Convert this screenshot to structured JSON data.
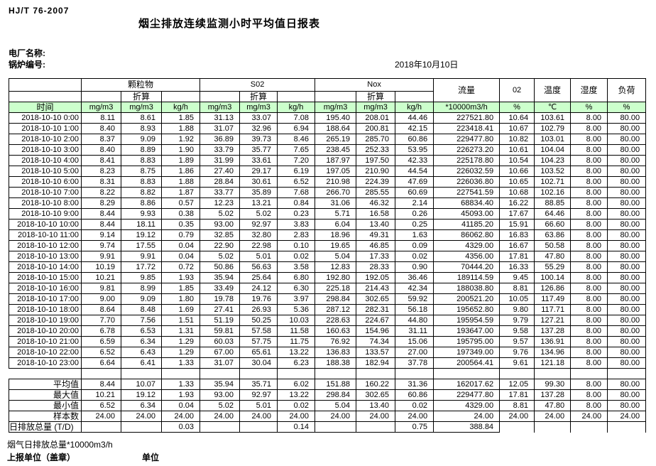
{
  "header": {
    "doc_code": "HJ/T  76-2007",
    "title": "烟尘排放连续监测小时平均值日报表",
    "plant_name_label": "电厂名称:",
    "boiler_no_label": "锅炉编号:",
    "date": "2018年10月10日"
  },
  "table": {
    "time_header": "时间",
    "converted_label": "折算",
    "groups": {
      "particulate": "颗粒物",
      "so2": "S02",
      "nox": "Nox",
      "flow": "流量",
      "o2": "02",
      "temperature": "温度",
      "humidity": "湿度",
      "load": "负荷"
    },
    "units": [
      "mg/m3",
      "mg/m3",
      "kg/h",
      "mg/m3",
      "mg/m3",
      "kg/h",
      "mg/m3",
      "mg/m3",
      "kg/h",
      "*10000m3/h",
      "%",
      "℃",
      "%",
      "%"
    ],
    "rows": [
      {
        "time": "2018-10-10 0:00",
        "values": [
          "8.11",
          "8.61",
          "1.85",
          "31.13",
          "33.07",
          "7.08",
          "195.40",
          "208.01",
          "44.46",
          "227521.80",
          "10.64",
          "103.61",
          "8.00",
          "80.00"
        ]
      },
      {
        "time": "2018-10-10 1:00",
        "values": [
          "8.40",
          "8.93",
          "1.88",
          "31.07",
          "32.96",
          "6.94",
          "188.64",
          "200.81",
          "42.15",
          "223418.41",
          "10.67",
          "102.79",
          "8.00",
          "80.00"
        ]
      },
      {
        "time": "2018-10-10 2:00",
        "values": [
          "8.37",
          "9.09",
          "1.92",
          "36.89",
          "39.73",
          "8.46",
          "265.19",
          "285.70",
          "60.86",
          "229477.80",
          "10.82",
          "103.01",
          "8.00",
          "80.00"
        ]
      },
      {
        "time": "2018-10-10 3:00",
        "values": [
          "8.40",
          "8.89",
          "1.90",
          "33.79",
          "35.77",
          "7.65",
          "238.45",
          "252.33",
          "53.95",
          "226273.20",
          "10.61",
          "104.04",
          "8.00",
          "80.00"
        ]
      },
      {
        "time": "2018-10-10 4:00",
        "values": [
          "8.41",
          "8.83",
          "1.89",
          "31.99",
          "33.61",
          "7.20",
          "187.97",
          "197.50",
          "42.33",
          "225178.80",
          "10.54",
          "104.23",
          "8.00",
          "80.00"
        ]
      },
      {
        "time": "2018-10-10 5:00",
        "values": [
          "8.23",
          "8.75",
          "1.86",
          "27.40",
          "29.17",
          "6.19",
          "197.05",
          "210.90",
          "44.54",
          "226032.59",
          "10.66",
          "103.52",
          "8.00",
          "80.00"
        ]
      },
      {
        "time": "2018-10-10 6:00",
        "values": [
          "8.31",
          "8.83",
          "1.88",
          "28.84",
          "30.61",
          "6.52",
          "210.98",
          "224.39",
          "47.69",
          "226036.80",
          "10.65",
          "102.71",
          "8.00",
          "80.00"
        ]
      },
      {
        "time": "2018-10-10 7:00",
        "values": [
          "8.22",
          "8.82",
          "1.87",
          "33.77",
          "35.89",
          "7.68",
          "266.70",
          "285.55",
          "60.69",
          "227541.59",
          "10.68",
          "102.16",
          "8.00",
          "80.00"
        ]
      },
      {
        "time": "2018-10-10 8:00",
        "values": [
          "8.29",
          "8.86",
          "0.57",
          "12.23",
          "13.21",
          "0.84",
          "31.06",
          "46.32",
          "2.14",
          "68834.40",
          "16.22",
          "88.85",
          "8.00",
          "80.00"
        ]
      },
      {
        "time": "2018-10-10 9:00",
        "values": [
          "8.44",
          "9.93",
          "0.38",
          "5.02",
          "5.02",
          "0.23",
          "5.71",
          "16.58",
          "0.26",
          "45093.00",
          "17.67",
          "64.46",
          "8.00",
          "80.00"
        ]
      },
      {
        "time": "2018-10-10 10:00",
        "values": [
          "8.44",
          "18.11",
          "0.35",
          "93.00",
          "92.97",
          "3.83",
          "6.04",
          "13.40",
          "0.25",
          "41185.20",
          "15.91",
          "66.60",
          "8.00",
          "80.00"
        ]
      },
      {
        "time": "2018-10-10 11:00",
        "values": [
          "9.14",
          "19.12",
          "0.79",
          "32.85",
          "32.80",
          "2.83",
          "18.96",
          "49.31",
          "1.63",
          "86062.80",
          "16.83",
          "63.86",
          "8.00",
          "80.00"
        ]
      },
      {
        "time": "2018-10-10 12:00",
        "values": [
          "9.74",
          "17.55",
          "0.04",
          "22.90",
          "22.98",
          "0.10",
          "19.65",
          "46.85",
          "0.09",
          "4329.00",
          "16.67",
          "50.58",
          "8.00",
          "80.00"
        ]
      },
      {
        "time": "2018-10-10 13:00",
        "values": [
          "9.91",
          "9.91",
          "0.04",
          "5.02",
          "5.01",
          "0.02",
          "5.04",
          "17.33",
          "0.02",
          "4356.00",
          "17.81",
          "47.80",
          "8.00",
          "80.00"
        ]
      },
      {
        "time": "2018-10-10 14:00",
        "values": [
          "10.19",
          "17.72",
          "0.72",
          "50.86",
          "56.63",
          "3.58",
          "12.83",
          "28.33",
          "0.90",
          "70444.20",
          "16.33",
          "55.29",
          "8.00",
          "80.00"
        ]
      },
      {
        "time": "2018-10-10 15:00",
        "values": [
          "10.21",
          "9.85",
          "1.93",
          "35.94",
          "25.64",
          "6.80",
          "192.80",
          "192.05",
          "36.46",
          "189114.59",
          "9.45",
          "100.14",
          "8.00",
          "80.00"
        ]
      },
      {
        "time": "2018-10-10 16:00",
        "values": [
          "9.81",
          "8.99",
          "1.85",
          "33.49",
          "24.12",
          "6.30",
          "225.18",
          "214.43",
          "42.34",
          "188038.80",
          "8.81",
          "126.86",
          "8.00",
          "80.00"
        ]
      },
      {
        "time": "2018-10-10 17:00",
        "values": [
          "9.00",
          "9.09",
          "1.80",
          "19.78",
          "19.76",
          "3.97",
          "298.84",
          "302.65",
          "59.92",
          "200521.20",
          "10.05",
          "117.49",
          "8.00",
          "80.00"
        ]
      },
      {
        "time": "2018-10-10 18:00",
        "values": [
          "8.64",
          "8.48",
          "1.69",
          "27.41",
          "26.93",
          "5.36",
          "287.12",
          "282.31",
          "56.18",
          "195652.80",
          "9.80",
          "117.71",
          "8.00",
          "80.00"
        ]
      },
      {
        "time": "2018-10-10 19:00",
        "values": [
          "7.70",
          "7.56",
          "1.51",
          "51.19",
          "50.25",
          "10.03",
          "228.63",
          "224.67",
          "44.80",
          "195954.59",
          "9.79",
          "127.21",
          "8.00",
          "80.00"
        ]
      },
      {
        "time": "2018-10-10 20:00",
        "values": [
          "6.78",
          "6.53",
          "1.31",
          "59.81",
          "57.58",
          "11.58",
          "160.63",
          "154.96",
          "31.11",
          "193647.00",
          "9.58",
          "137.28",
          "8.00",
          "80.00"
        ]
      },
      {
        "time": "2018-10-10 21:00",
        "values": [
          "6.59",
          "6.34",
          "1.29",
          "60.03",
          "57.75",
          "11.75",
          "76.92",
          "74.34",
          "15.06",
          "195795.00",
          "9.57",
          "136.91",
          "8.00",
          "80.00"
        ]
      },
      {
        "time": "2018-10-10 22:00",
        "values": [
          "6.52",
          "6.43",
          "1.29",
          "67.00",
          "65.61",
          "13.22",
          "136.83",
          "133.57",
          "27.00",
          "197349.00",
          "9.76",
          "134.96",
          "8.00",
          "80.00"
        ]
      },
      {
        "time": "2018-10-10 23:00",
        "values": [
          "6.64",
          "6.41",
          "1.33",
          "31.07",
          "30.04",
          "6.23",
          "188.38",
          "182.94",
          "37.78",
          "200564.41",
          "9.61",
          "121.18",
          "8.00",
          "80.00"
        ]
      }
    ],
    "summary_rows": [
      {
        "label": "平均值",
        "values": [
          "8.44",
          "10.07",
          "1.33",
          "35.94",
          "35.71",
          "6.02",
          "151.88",
          "160.22",
          "31.36",
          "162017.62",
          "12.05",
          "99.30",
          "8.00",
          "80.00"
        ]
      },
      {
        "label": "最大值",
        "values": [
          "10.21",
          "19.12",
          "1.93",
          "93.00",
          "92.97",
          "13.22",
          "298.84",
          "302.65",
          "60.86",
          "229477.80",
          "17.81",
          "137.28",
          "8.00",
          "80.00"
        ]
      },
      {
        "label": "最小值",
        "values": [
          "6.52",
          "6.34",
          "0.04",
          "5.02",
          "5.01",
          "0.02",
          "5.04",
          "13.40",
          "0.02",
          "4329.00",
          "8.81",
          "47.80",
          "8.00",
          "80.00"
        ]
      },
      {
        "label": "样本数",
        "values": [
          "24.00",
          "24.00",
          "24.00",
          "24.00",
          "24.00",
          "24.00",
          "24.00",
          "24.00",
          "24.00",
          "24.00",
          "24.00",
          "24.00",
          "24.00",
          "24.00"
        ]
      },
      {
        "label": "日排放总量 (T/D)",
        "values": [
          "",
          "",
          "0.03",
          "",
          "",
          "0.14",
          "",
          "",
          "0.75",
          "388.84",
          "",
          "",
          "",
          ""
        ]
      }
    ]
  },
  "footer": {
    "flue_gas_total": "烟气日排放总量*10000m3/h",
    "report_unit_label": "上报单位（盖章）",
    "unit_label": "单位"
  },
  "colors": {
    "header_green": "#ccffcc",
    "border": "#000000",
    "text": "#000000"
  }
}
